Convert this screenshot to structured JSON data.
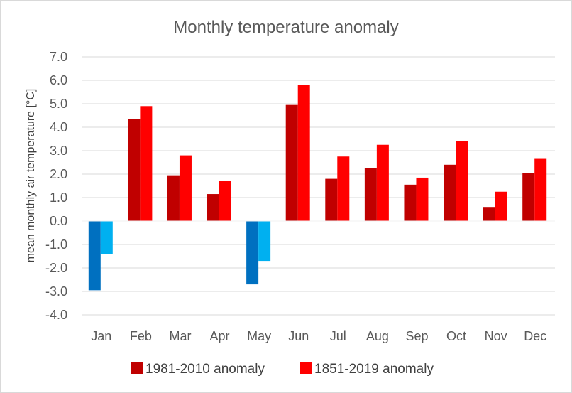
{
  "chart_data": {
    "type": "bar",
    "title": "Monthly temperature anomaly",
    "xlabel": "",
    "ylabel": "mean monthly air temperature [°C]",
    "categories": [
      "Jan",
      "Feb",
      "Mar",
      "Apr",
      "May",
      "Jun",
      "Jul",
      "Aug",
      "Sep",
      "Oct",
      "Nov",
      "Dec"
    ],
    "ylim": [
      -4.0,
      7.0
    ],
    "yticks": [
      "7.0",
      "6.0",
      "5.0",
      "4.0",
      "3.0",
      "2.0",
      "1.0",
      "0.0",
      "-1.0",
      "-2.0",
      "-3.0",
      "-4.0"
    ],
    "grid": true,
    "legend_position": "bottom",
    "series": [
      {
        "name": "1981-2010 anomaly",
        "color": "#C00000",
        "negative_color": "#0070C0",
        "values": [
          -2.95,
          4.35,
          1.95,
          1.15,
          -2.7,
          4.95,
          1.8,
          2.25,
          1.55,
          2.4,
          0.6,
          2.05
        ]
      },
      {
        "name": "1851-2019 anomaly",
        "color": "#FF0000",
        "negative_color": "#00B0F0",
        "values": [
          -1.4,
          4.9,
          2.8,
          1.7,
          -1.7,
          5.8,
          2.75,
          3.25,
          1.85,
          3.4,
          1.25,
          2.65
        ]
      }
    ]
  }
}
